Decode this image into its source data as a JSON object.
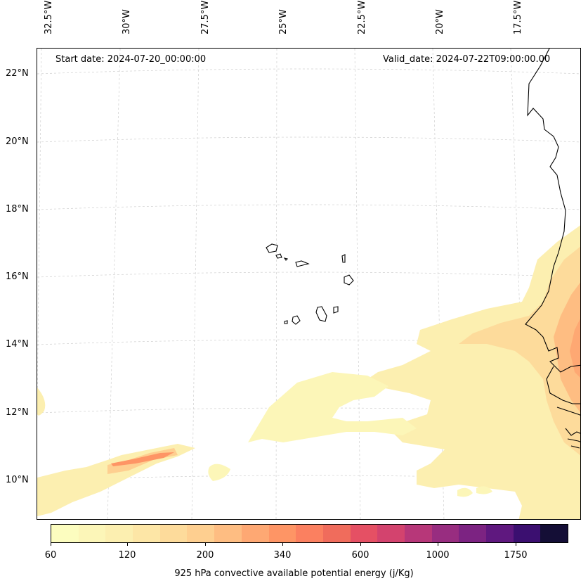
{
  "header": {
    "start_date": "Start date: 2024-07-20_00:00:00",
    "valid_date": "Valid_date: 2024-07-22T09:00:00.00"
  },
  "axes": {
    "lon_labels": [
      "32.5°W",
      "30°W",
      "27.5°W",
      "25°W",
      "22.5°W",
      "20°W",
      "17.5°W"
    ],
    "lat_labels": [
      "22°N",
      "20°N",
      "18°N",
      "16°N",
      "14°N",
      "12°N",
      "10°N"
    ]
  },
  "map": {
    "grid": true,
    "coastline_color": "#000000",
    "features": [
      "Cape Verde islands",
      "West African coast"
    ]
  },
  "colorbar": {
    "label": "925 hPa convective available potential energy (j/Kg)",
    "tick_labels": [
      "60",
      "120",
      "200",
      "340",
      "600",
      "1000",
      "1750"
    ],
    "colors": [
      "#fcfdbf",
      "#fcf6b8",
      "#fcefb0",
      "#fde6a6",
      "#fddb9b",
      "#fecf90",
      "#febd82",
      "#fea873",
      "#fe9565",
      "#fb8060",
      "#f06c5c",
      "#e55064",
      "#d3436e",
      "#b73779",
      "#982d80",
      "#7c2382",
      "#5f187f",
      "#3b0f70",
      "#140e36"
    ]
  }
}
